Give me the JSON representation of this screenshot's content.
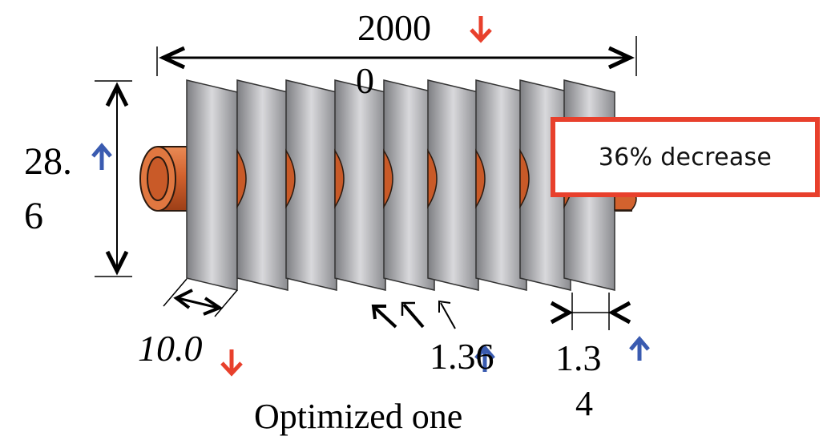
{
  "labels": {
    "length_line1": "2000",
    "length_line2": "0",
    "height_line1": "28.",
    "height_line2": "6",
    "fin_spacing": "10.0",
    "fin_thickness": "1.36",
    "tube_dimension_line1": "1.3",
    "tube_dimension_line2": "4",
    "caption": "Optimized one"
  },
  "callout": {
    "text": "36% decrease"
  },
  "colors": {
    "decrease_arrow": "#e8402c",
    "increase_arrow": "#3a5bb0",
    "tube": "#d2622e",
    "fin": "#a9aaad",
    "callout_border": "#e8402c"
  },
  "indicators": {
    "length": "down-arrow-icon",
    "height": "up-arrow-icon",
    "fin_spacing": "down-arrow-icon",
    "fin_thickness": "up-arrow-icon",
    "tube_dimension": "up-arrow-icon"
  }
}
